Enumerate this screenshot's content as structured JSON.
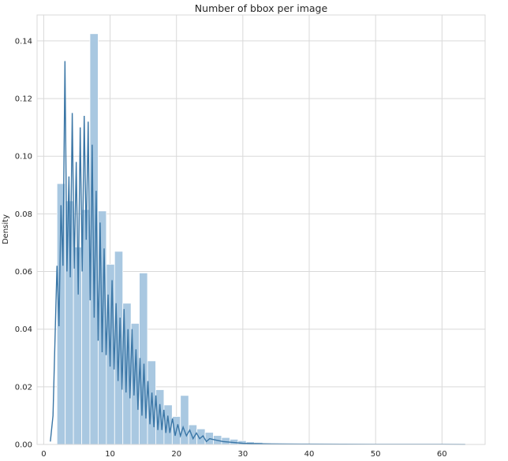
{
  "chart_data": {
    "type": "bar",
    "title": "Number of bbox per image",
    "xlabel": "",
    "ylabel": "Density",
    "xlim": [
      -1.0,
      66.5
    ],
    "ylim": [
      0,
      0.149
    ],
    "x_ticks": [
      0,
      10,
      20,
      30,
      40,
      50,
      60
    ],
    "y_ticks": [
      0.0,
      0.02,
      0.04,
      0.06,
      0.08,
      0.1,
      0.12,
      0.14
    ],
    "grid": true,
    "bin_start": 2,
    "bin_width": 1.24,
    "histogram_values": [
      0.0905,
      0.0845,
      0.0685,
      0.0815,
      0.1425,
      0.081,
      0.0625,
      0.067,
      0.049,
      0.042,
      0.0595,
      0.029,
      0.019,
      0.0137,
      0.0097,
      0.017,
      0.0068,
      0.0054,
      0.0042,
      0.0031,
      0.0024,
      0.0018,
      0.0013,
      0.0009,
      0.0007,
      0.0005,
      0.0004,
      0.0003,
      0.00025,
      0.0002,
      0.00015,
      0.00012,
      0.0001,
      0.0001,
      8e-05,
      8e-05,
      6e-05,
      6e-05,
      5e-05,
      5e-05,
      4e-05,
      4e-05,
      3e-05,
      3e-05,
      3e-05,
      2e-05,
      2e-05,
      2e-05,
      2e-05,
      1e-05
    ],
    "kde": {
      "x": [
        1.0,
        1.4,
        1.8,
        2.0,
        2.3,
        2.6,
        2.9,
        3.2,
        3.5,
        3.8,
        4.0,
        4.3,
        4.6,
        4.9,
        5.2,
        5.5,
        5.8,
        6.1,
        6.4,
        6.7,
        7.0,
        7.3,
        7.6,
        7.9,
        8.2,
        8.5,
        8.8,
        9.1,
        9.4,
        9.7,
        10.0,
        10.3,
        10.6,
        10.9,
        11.2,
        11.5,
        11.8,
        12.1,
        12.4,
        12.7,
        13.0,
        13.3,
        13.6,
        13.9,
        14.2,
        14.5,
        14.8,
        15.1,
        15.4,
        15.7,
        16.0,
        16.3,
        16.6,
        16.9,
        17.2,
        17.5,
        17.8,
        18.1,
        18.4,
        18.7,
        19.0,
        19.4,
        19.8,
        20.2,
        20.6,
        21.0,
        21.5,
        22.0,
        22.5,
        23.0,
        23.5,
        24.0,
        24.5,
        25.0,
        26.0,
        27.0,
        28.0,
        29.0,
        30.0,
        32.0,
        34.0,
        36.0,
        40.0,
        45.0,
        50.0,
        55.0,
        60.0,
        63.5
      ],
      "y": [
        0.001,
        0.01,
        0.045,
        0.062,
        0.041,
        0.083,
        0.062,
        0.133,
        0.06,
        0.093,
        0.058,
        0.115,
        0.061,
        0.098,
        0.052,
        0.11,
        0.06,
        0.114,
        0.071,
        0.112,
        0.05,
        0.104,
        0.044,
        0.088,
        0.036,
        0.077,
        0.032,
        0.068,
        0.031,
        0.052,
        0.027,
        0.057,
        0.026,
        0.049,
        0.022,
        0.044,
        0.019,
        0.047,
        0.018,
        0.04,
        0.016,
        0.04,
        0.017,
        0.033,
        0.012,
        0.03,
        0.01,
        0.028,
        0.009,
        0.022,
        0.007,
        0.018,
        0.006,
        0.017,
        0.005,
        0.014,
        0.005,
        0.012,
        0.004,
        0.01,
        0.004,
        0.009,
        0.003,
        0.007,
        0.003,
        0.006,
        0.003,
        0.005,
        0.002,
        0.004,
        0.002,
        0.003,
        0.001,
        0.002,
        0.0015,
        0.001,
        0.0008,
        0.0006,
        0.0004,
        0.0003,
        0.0002,
        0.00015,
        0.0001,
        8e-05,
        6e-05,
        5e-05,
        4e-05,
        3e-05
      ]
    },
    "colors": {
      "bar": "#a9c8e1",
      "line": "#3a76a6",
      "grid": "#d9d9d9",
      "text": "#262626"
    }
  }
}
